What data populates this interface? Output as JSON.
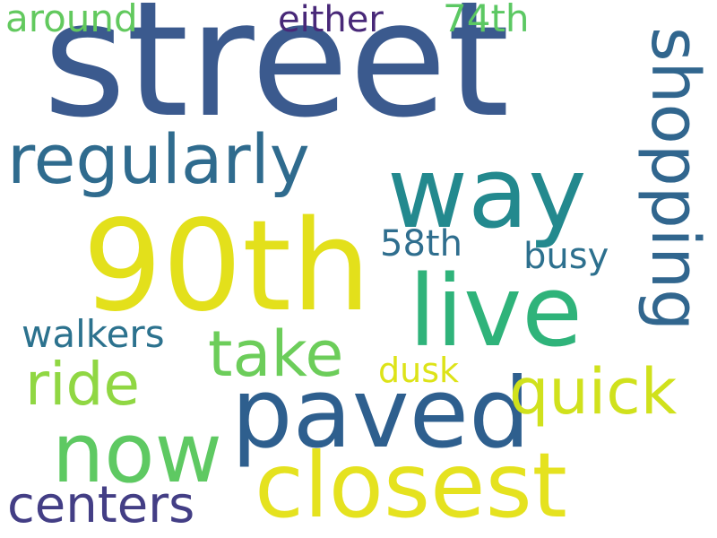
{
  "words": {
    "street": {
      "text": "street",
      "color": "#3b5a8e"
    },
    "90th": {
      "text": "90th",
      "color": "#e3e01b"
    },
    "way": {
      "text": "way",
      "color": "#23898e"
    },
    "live": {
      "text": "live",
      "color": "#2fb37a"
    },
    "paved": {
      "text": "paved",
      "color": "#2e5f8e"
    },
    "closest": {
      "text": "closest",
      "color": "#e5e21f"
    },
    "now": {
      "text": "now",
      "color": "#5ec962"
    },
    "regularly": {
      "text": "regularly",
      "color": "#2f6b8e"
    },
    "shopping": {
      "text": "shopping",
      "color": "#31668e"
    },
    "take": {
      "text": "take",
      "color": "#6ccd5a"
    },
    "quick": {
      "text": "quick",
      "color": "#d0e11c"
    },
    "ride": {
      "text": "ride",
      "color": "#90d743"
    },
    "centers": {
      "text": "centers",
      "color": "#433e85"
    },
    "around": {
      "text": "around",
      "color": "#62c95e"
    },
    "either": {
      "text": "either",
      "color": "#482878"
    },
    "74th": {
      "text": "74th",
      "color": "#5cc863"
    },
    "58th": {
      "text": "58th",
      "color": "#2f6e8e"
    },
    "busy": {
      "text": "busy",
      "color": "#2d708e"
    },
    "walkers": {
      "text": "walkers",
      "color": "#2c728e"
    },
    "dusk": {
      "text": "dusk",
      "color": "#dde318"
    }
  }
}
